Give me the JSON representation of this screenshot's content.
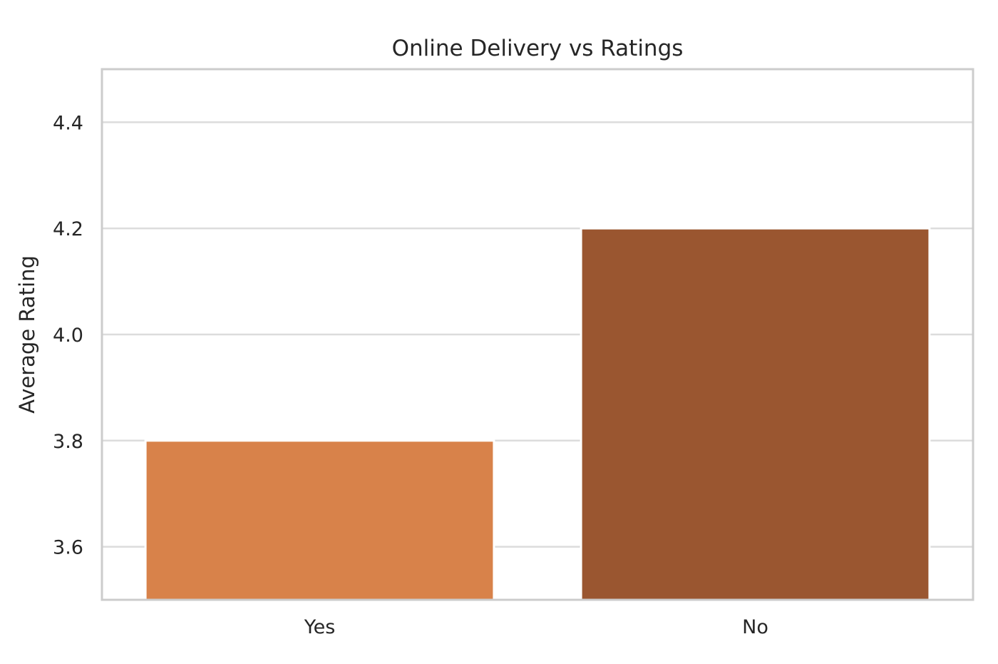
{
  "chart_data": {
    "type": "bar",
    "title": "Online Delivery vs Ratings",
    "xlabel": "",
    "ylabel": "Average Rating",
    "categories": [
      "Yes",
      "No"
    ],
    "values": [
      3.8,
      4.2
    ],
    "colors": [
      "#d8824a",
      "#9a5630"
    ],
    "ylim": [
      3.5,
      4.5
    ],
    "yticks": [
      3.6,
      3.8,
      4.0,
      4.2,
      4.4
    ],
    "ytick_labels": [
      "3.6",
      "3.8",
      "4.0",
      "4.2",
      "4.4"
    ],
    "grid": "horizontal",
    "legend": "none"
  }
}
